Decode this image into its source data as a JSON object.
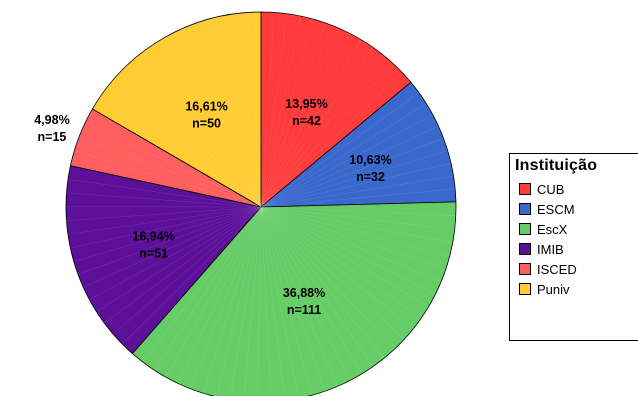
{
  "chart_data": {
    "type": "pie",
    "title": "",
    "legend": {
      "title": "Instituição",
      "position": "right"
    },
    "slices": [
      {
        "name": "CUB",
        "value": 42,
        "percent": "13,95%",
        "n_label": "n=42",
        "color": "#ff3b3b"
      },
      {
        "name": "ESCM",
        "value": 32,
        "percent": "10,63%",
        "n_label": "n=32",
        "color": "#3b68cc"
      },
      {
        "name": "EscX",
        "value": 111,
        "percent": "36,88%",
        "n_label": "n=111",
        "color": "#66cc66"
      },
      {
        "name": "IMIB",
        "value": 51,
        "percent": "16,94%",
        "n_label": "n=51",
        "color": "#5c0f99"
      },
      {
        "name": "ISCED",
        "value": 15,
        "percent": "4,98%",
        "n_label": "n=15",
        "color": "#ff5f5f"
      },
      {
        "name": "Puniv",
        "value": 50,
        "percent": "16,61%",
        "n_label": "n=50",
        "color": "#ffcc33"
      }
    ]
  }
}
